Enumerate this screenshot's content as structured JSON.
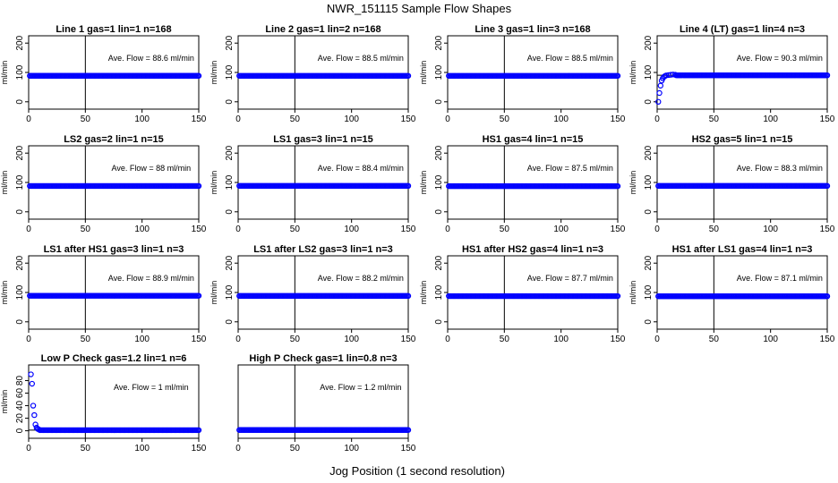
{
  "figure": {
    "title": "NWR_151115  Sample Flow Shapes",
    "xlabel": "Jog Position (1 second resolution)"
  },
  "chart_data": [
    {
      "type": "scatter",
      "title": "Line 1 gas=1 lin=1 n=168",
      "annotation": "Ave. Flow =  88.6  ml/min",
      "ylabel": "ml/min",
      "xlim": [
        0,
        150
      ],
      "ylim": [
        -25,
        225
      ],
      "xticks": [
        0,
        50,
        100,
        150
      ],
      "yticks": [
        0,
        100,
        200
      ],
      "vline": 50,
      "hline": 88.6,
      "points_profile": "flat",
      "color": "#0000ff",
      "series": [
        {
          "x_range": [
            1,
            150
          ],
          "y": 88.6
        }
      ]
    },
    {
      "type": "scatter",
      "title": "Line 2 gas=1 lin=2 n=168",
      "annotation": "Ave. Flow =  88.5  ml/min",
      "ylabel": "ml/min",
      "xlim": [
        0,
        150
      ],
      "ylim": [
        -25,
        225
      ],
      "xticks": [
        0,
        50,
        100,
        150
      ],
      "yticks": [
        0,
        100,
        200
      ],
      "vline": 50,
      "hline": 88.5,
      "points_profile": "flat",
      "color": "#0000ff",
      "series": [
        {
          "x_range": [
            1,
            150
          ],
          "y": 88.5
        }
      ]
    },
    {
      "type": "scatter",
      "title": "Line 3 gas=1 lin=3 n=168",
      "annotation": "Ave. Flow =  88.5  ml/min",
      "ylabel": "ml/min",
      "xlim": [
        0,
        150
      ],
      "ylim": [
        -25,
        225
      ],
      "xticks": [
        0,
        50,
        100,
        150
      ],
      "yticks": [
        0,
        100,
        200
      ],
      "vline": 50,
      "hline": 88.5,
      "points_profile": "flat",
      "color": "#0000ff",
      "series": [
        {
          "x_range": [
            1,
            150
          ],
          "y": 88.5
        }
      ]
    },
    {
      "type": "scatter",
      "title": "Line 4 (LT) gas=1 lin=4 n=3",
      "annotation": "Ave. Flow =  90.3  ml/min",
      "ylabel": "ml/min",
      "xlim": [
        0,
        150
      ],
      "ylim": [
        -25,
        225
      ],
      "xticks": [
        0,
        50,
        100,
        150
      ],
      "yticks": [
        0,
        100,
        200
      ],
      "vline": 50,
      "hline": 90.3,
      "points_profile": "rise",
      "color": "#0000ff",
      "series": [
        {
          "x": [
            1,
            2,
            3,
            4,
            5,
            6,
            7,
            8,
            10,
            12,
            14,
            16
          ],
          "y": [
            0,
            30,
            55,
            72,
            80,
            85,
            88,
            90,
            91,
            92,
            93,
            92
          ]
        },
        {
          "x_range": [
            17,
            150
          ],
          "y": 90.3
        }
      ]
    },
    {
      "type": "scatter",
      "title": "LS2 gas=2 lin=1 n=15",
      "annotation": "Ave. Flow =  88  ml/min",
      "ylabel": "ml/min",
      "xlim": [
        0,
        150
      ],
      "ylim": [
        -25,
        225
      ],
      "xticks": [
        0,
        50,
        100,
        150
      ],
      "yticks": [
        0,
        100,
        200
      ],
      "vline": 50,
      "hline": 88,
      "points_profile": "flat",
      "color": "#0000ff",
      "series": [
        {
          "x_range": [
            1,
            150
          ],
          "y": 88
        }
      ]
    },
    {
      "type": "scatter",
      "title": "LS1 gas=3 lin=1 n=15",
      "annotation": "Ave. Flow =  88.4  ml/min",
      "ylabel": "ml/min",
      "xlim": [
        0,
        150
      ],
      "ylim": [
        -25,
        225
      ],
      "xticks": [
        0,
        50,
        100,
        150
      ],
      "yticks": [
        0,
        100,
        200
      ],
      "vline": 50,
      "hline": 88.4,
      "points_profile": "flat",
      "color": "#0000ff",
      "series": [
        {
          "x_range": [
            1,
            150
          ],
          "y": 88.4
        }
      ]
    },
    {
      "type": "scatter",
      "title": "HS1 gas=4 lin=1 n=15",
      "annotation": "Ave. Flow =  87.5  ml/min",
      "ylabel": "ml/min",
      "xlim": [
        0,
        150
      ],
      "ylim": [
        -25,
        225
      ],
      "xticks": [
        0,
        50,
        100,
        150
      ],
      "yticks": [
        0,
        100,
        200
      ],
      "vline": 50,
      "hline": 87.5,
      "points_profile": "flat",
      "color": "#0000ff",
      "series": [
        {
          "x_range": [
            1,
            150
          ],
          "y": 87.5
        }
      ]
    },
    {
      "type": "scatter",
      "title": "HS2 gas=5 lin=1 n=15",
      "annotation": "Ave. Flow =  88.3  ml/min",
      "ylabel": "ml/min",
      "xlim": [
        0,
        150
      ],
      "ylim": [
        -25,
        225
      ],
      "xticks": [
        0,
        50,
        100,
        150
      ],
      "yticks": [
        0,
        100,
        200
      ],
      "vline": 50,
      "hline": 88.3,
      "points_profile": "flat",
      "color": "#0000ff",
      "series": [
        {
          "x_range": [
            1,
            150
          ],
          "y": 88.3
        }
      ]
    },
    {
      "type": "scatter",
      "title": "LS1 after HS1 gas=3 lin=1 n=3",
      "annotation": "Ave. Flow =  88.9  ml/min",
      "ylabel": "ml/min",
      "xlim": [
        0,
        150
      ],
      "ylim": [
        -25,
        225
      ],
      "xticks": [
        0,
        50,
        100,
        150
      ],
      "yticks": [
        0,
        100,
        200
      ],
      "vline": 50,
      "hline": 88.9,
      "points_profile": "flat",
      "color": "#0000ff",
      "series": [
        {
          "x_range": [
            1,
            150
          ],
          "y": 88.9
        }
      ]
    },
    {
      "type": "scatter",
      "title": "LS1 after LS2 gas=3 lin=1 n=3",
      "annotation": "Ave. Flow =  88.2  ml/min",
      "ylabel": "ml/min",
      "xlim": [
        0,
        150
      ],
      "ylim": [
        -25,
        225
      ],
      "xticks": [
        0,
        50,
        100,
        150
      ],
      "yticks": [
        0,
        100,
        200
      ],
      "vline": 50,
      "hline": 88.2,
      "points_profile": "flat",
      "color": "#0000ff",
      "series": [
        {
          "x_range": [
            1,
            150
          ],
          "y": 88.2
        }
      ]
    },
    {
      "type": "scatter",
      "title": "HS1 after HS2 gas=4 lin=1 n=3",
      "annotation": "Ave. Flow =  87.7  ml/min",
      "ylabel": "ml/min",
      "xlim": [
        0,
        150
      ],
      "ylim": [
        -25,
        225
      ],
      "xticks": [
        0,
        50,
        100,
        150
      ],
      "yticks": [
        0,
        100,
        200
      ],
      "vline": 50,
      "hline": 87.7,
      "points_profile": "flat",
      "color": "#0000ff",
      "series": [
        {
          "x_range": [
            1,
            150
          ],
          "y": 87.7
        }
      ]
    },
    {
      "type": "scatter",
      "title": "HS1 after LS1 gas=4 lin=1 n=3",
      "annotation": "Ave. Flow =  87.1  ml/min",
      "ylabel": "ml/min",
      "xlim": [
        0,
        150
      ],
      "ylim": [
        -25,
        225
      ],
      "xticks": [
        0,
        50,
        100,
        150
      ],
      "yticks": [
        0,
        100,
        200
      ],
      "vline": 50,
      "hline": 87.1,
      "points_profile": "flat",
      "color": "#0000ff",
      "series": [
        {
          "x_range": [
            1,
            150
          ],
          "y": 87.1
        }
      ]
    },
    {
      "type": "scatter",
      "title": "Low P Check gas=1.2 lin=1 n=6",
      "annotation": "Ave. Flow =  1  ml/min",
      "ylabel": "ml/min",
      "xlim": [
        0,
        150
      ],
      "ylim": [
        -12,
        105
      ],
      "xticks": [
        0,
        50,
        100,
        150
      ],
      "yticks": [
        0,
        20,
        40,
        60,
        80
      ],
      "vline": 50,
      "hline": 1,
      "points_profile": "decay",
      "color": "#0000ff",
      "series": [
        {
          "x": [
            2,
            3,
            4,
            5,
            6,
            7,
            8,
            9,
            10
          ],
          "y": [
            90,
            75,
            40,
            25,
            10,
            5,
            3,
            2,
            1
          ]
        },
        {
          "x_range": [
            11,
            150
          ],
          "y": 1
        }
      ]
    },
    {
      "type": "scatter",
      "title": "High P Check gas=1 lin=0.8 n=3",
      "annotation": "Ave. Flow =  1.2  ml/min",
      "ylabel": "",
      "xlim": [
        0,
        150
      ],
      "ylim": [
        -12,
        105
      ],
      "xticks": [
        0,
        50,
        100,
        150
      ],
      "yticks": [],
      "vline": 50,
      "hline": 1.2,
      "points_profile": "flat",
      "color": "#0000ff",
      "series": [
        {
          "x_range": [
            1,
            150
          ],
          "y": 1.2
        }
      ]
    }
  ]
}
